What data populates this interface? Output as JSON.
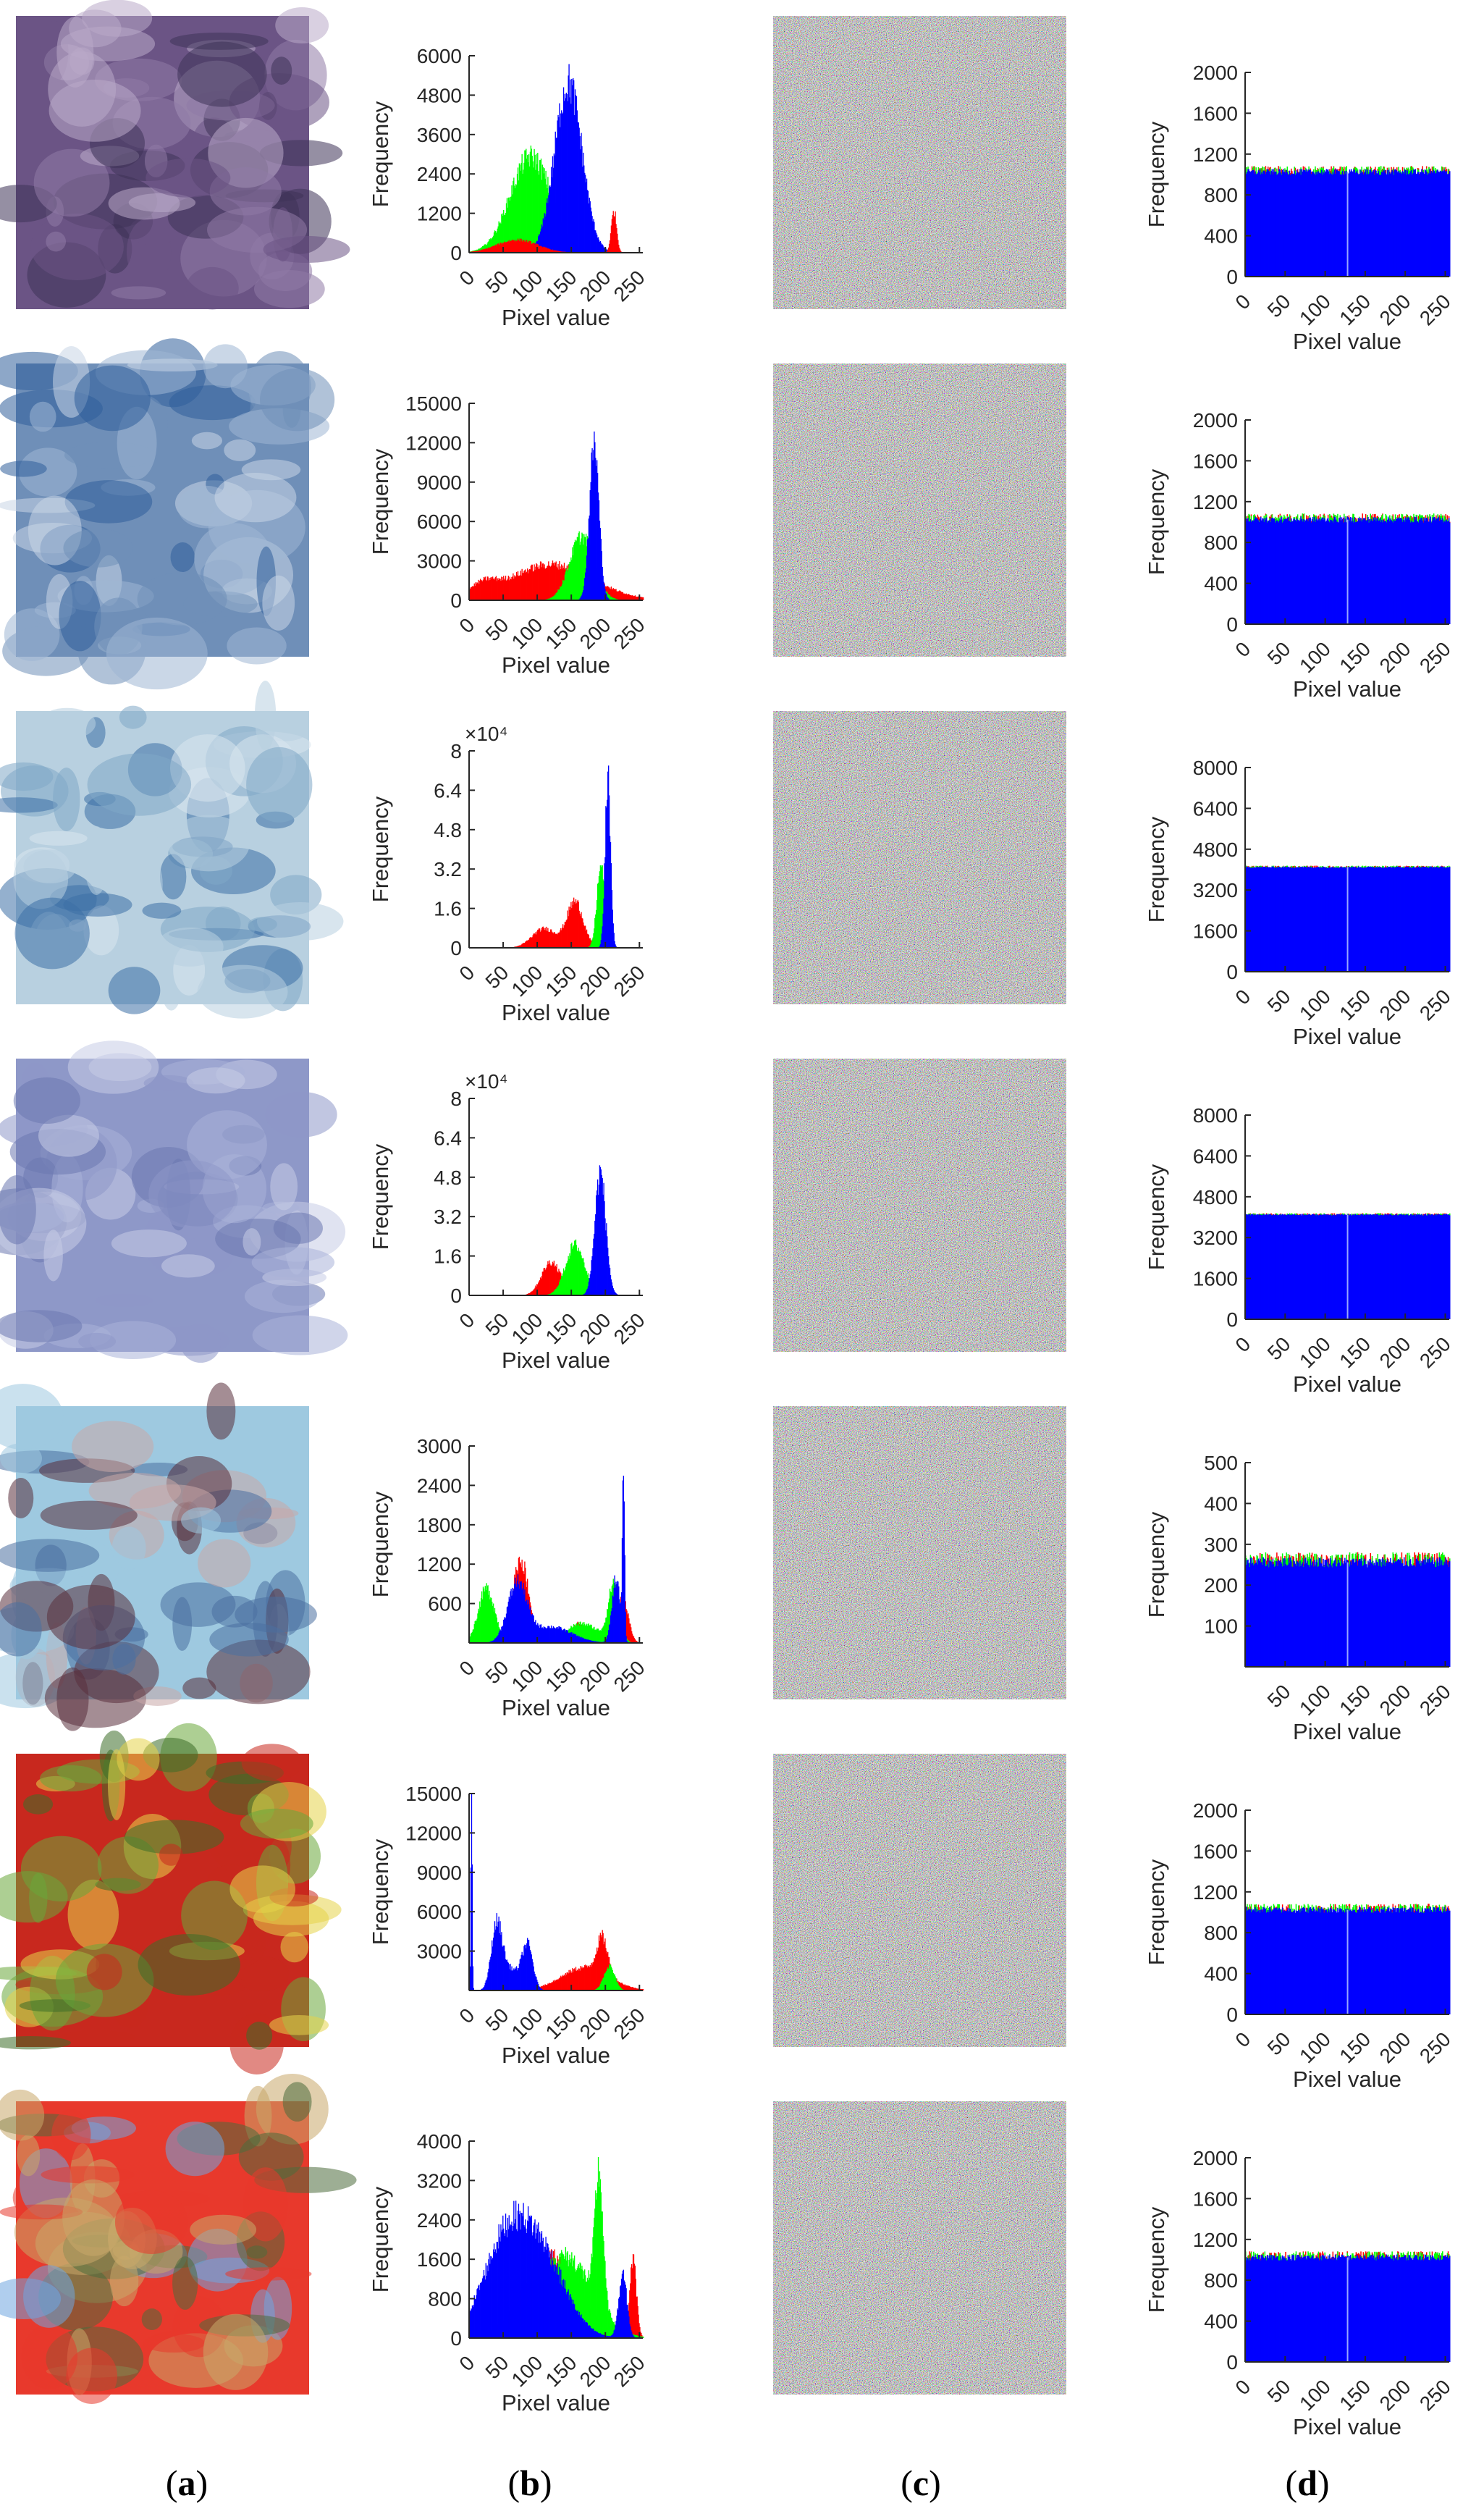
{
  "panel_labels": {
    "a": {
      "open": "(",
      "letter": "a",
      "close": ")"
    },
    "b": {
      "open": "(",
      "letter": "b",
      "close": ")"
    },
    "c": {
      "open": "(",
      "letter": "c",
      "close": ")"
    },
    "d": {
      "open": "(",
      "letter": "d",
      "close": ")"
    }
  },
  "rows": [
    {
      "image": "aerial-airport",
      "image_colors": [
        "#6b5485",
        "#8f7aa6",
        "#3e3358",
        "#b9a9c9"
      ]
    },
    {
      "image": "aerial-city",
      "image_colors": [
        "#6f8fb8",
        "#9fb7d4",
        "#2f5f9a",
        "#c8d6e6"
      ]
    },
    {
      "image": "aerial-river",
      "image_colors": [
        "#b8d0e0",
        "#d8e6ee",
        "#7fa7c7",
        "#3d6fa5"
      ]
    },
    {
      "image": "aerial-fields",
      "image_colors": [
        "#8e98c8",
        "#aab3d8",
        "#6c78b0",
        "#c6cce6"
      ]
    },
    {
      "image": "tree-seascape",
      "image_colors": [
        "#9ec9e0",
        "#5a2f3c",
        "#c9a7a7",
        "#4a6fa0"
      ]
    },
    {
      "image": "peppers",
      "image_colors": [
        "#c8281e",
        "#6aa83a",
        "#e6d44a",
        "#3c6e28"
      ]
    },
    {
      "image": "baboon",
      "image_colors": [
        "#e8392c",
        "#6fa6e0",
        "#c8a86a",
        "#4d6b3c"
      ]
    }
  ],
  "chart_data": [
    {
      "type": "bar",
      "panel": "b",
      "row": 1,
      "xlabel": "Pixel value",
      "ylabel": "Frequency",
      "xlim": [
        0,
        255
      ],
      "ylim": [
        0,
        6000
      ],
      "yticks": [
        "0",
        "1200",
        "2400",
        "3600",
        "4800",
        "6000"
      ],
      "xticks": [
        "0",
        "50",
        "100",
        "150",
        "200",
        "250"
      ],
      "exponent": "",
      "series": [
        {
          "name": "",
          "color": "#00ff00",
          "peaks": [
            {
              "x": 90,
              "y": 3000,
              "w": 30
            }
          ]
        },
        {
          "name": "",
          "color": "#0000ff",
          "peaks": [
            {
              "x": 145,
              "y": 5300,
              "w": 20
            }
          ]
        },
        {
          "name": "",
          "color": "#ff0000",
          "peaks": [
            {
              "x": 212,
              "y": 1300,
              "w": 4
            },
            {
              "x": 70,
              "y": 400,
              "w": 30
            }
          ]
        }
      ]
    },
    {
      "type": "bar",
      "panel": "d",
      "row": 1,
      "xlabel": "Pixel value",
      "ylabel": "Frequency",
      "xlim": [
        0,
        255
      ],
      "ylim": [
        0,
        2000
      ],
      "yticks": [
        "0",
        "400",
        "800",
        "1200",
        "1600",
        "2000"
      ],
      "xticks": [
        "0",
        "50",
        "100",
        "150",
        "200",
        "250"
      ],
      "exponent": "",
      "flat_level": 1024,
      "noise": 60
    },
    {
      "type": "bar",
      "panel": "b",
      "row": 2,
      "xlabel": "Pixel value",
      "ylabel": "Frequency",
      "xlim": [
        0,
        255
      ],
      "ylim": [
        0,
        15000
      ],
      "yticks": [
        "0",
        "3000",
        "6000",
        "9000",
        "12000",
        "15000"
      ],
      "xticks": [
        "0",
        "50",
        "100",
        "150",
        "200",
        "250"
      ],
      "exponent": "",
      "series": [
        {
          "name": "",
          "color": "#ff0000",
          "peaks": [
            {
              "x": 120,
              "y": 2800,
              "w": 60
            },
            {
              "x": 20,
              "y": 900,
              "w": 20
            }
          ]
        },
        {
          "name": "",
          "color": "#00ff00",
          "peaks": [
            {
              "x": 165,
              "y": 5000,
              "w": 18
            }
          ]
        },
        {
          "name": "",
          "color": "#0000ff",
          "peaks": [
            {
              "x": 183,
              "y": 12200,
              "w": 7
            }
          ]
        }
      ]
    },
    {
      "type": "bar",
      "panel": "d",
      "row": 2,
      "xlabel": "Pixel value",
      "ylabel": "Frequency",
      "xlim": [
        0,
        255
      ],
      "ylim": [
        0,
        2000
      ],
      "yticks": [
        "0",
        "400",
        "800",
        "1200",
        "1600",
        "2000"
      ],
      "xticks": [
        "0",
        "50",
        "100",
        "150",
        "200",
        "250"
      ],
      "exponent": "",
      "flat_level": 1024,
      "noise": 60
    },
    {
      "type": "bar",
      "panel": "b",
      "row": 3,
      "xlabel": "Pixel value",
      "ylabel": "Frequency",
      "xlim": [
        0,
        255
      ],
      "ylim": [
        0,
        80000
      ],
      "yticks": [
        "0",
        "1.6",
        "3.2",
        "4.8",
        "6.4",
        "8"
      ],
      "xticks": [
        "0",
        "50",
        "100",
        "150",
        "200",
        "250"
      ],
      "exponent": "×10⁴",
      "series": [
        {
          "name": "",
          "color": "#ff0000",
          "peaks": [
            {
              "x": 155,
              "y": 19000,
              "w": 12
            },
            {
              "x": 110,
              "y": 8000,
              "w": 18
            }
          ]
        },
        {
          "name": "",
          "color": "#00ff00",
          "peaks": [
            {
              "x": 193,
              "y": 34000,
              "w": 6
            }
          ]
        },
        {
          "name": "",
          "color": "#0000ff",
          "peaks": [
            {
              "x": 203,
              "y": 70000,
              "w": 4
            }
          ]
        }
      ]
    },
    {
      "type": "bar",
      "panel": "d",
      "row": 3,
      "xlabel": "Pixel value",
      "ylabel": "Frequency",
      "xlim": [
        0,
        255
      ],
      "ylim": [
        0,
        8000
      ],
      "yticks": [
        "0",
        "1600",
        "3200",
        "4800",
        "6400",
        "8000"
      ],
      "xticks": [
        "0",
        "50",
        "100",
        "150",
        "200",
        "250"
      ],
      "exponent": "",
      "flat_level": 4096,
      "noise": 60
    },
    {
      "type": "bar",
      "panel": "b",
      "row": 4,
      "xlabel": "Pixel value",
      "ylabel": "Frequency",
      "xlim": [
        0,
        255
      ],
      "ylim": [
        0,
        80000
      ],
      "yticks": [
        "0",
        "1.6",
        "3.2",
        "4.8",
        "6.4",
        "8"
      ],
      "xticks": [
        "0",
        "50",
        "100",
        "150",
        "200",
        "250"
      ],
      "exponent": "×10⁴",
      "series": [
        {
          "name": "",
          "color": "#ff0000",
          "peaks": [
            {
              "x": 120,
              "y": 14000,
              "w": 14
            }
          ]
        },
        {
          "name": "",
          "color": "#00ff00",
          "peaks": [
            {
              "x": 155,
              "y": 21000,
              "w": 14
            }
          ]
        },
        {
          "name": "",
          "color": "#0000ff",
          "peaks": [
            {
              "x": 192,
              "y": 51000,
              "w": 8
            }
          ]
        }
      ]
    },
    {
      "type": "bar",
      "panel": "d",
      "row": 4,
      "xlabel": "Pixel value",
      "ylabel": "Frequency",
      "xlim": [
        0,
        255
      ],
      "ylim": [
        0,
        8000
      ],
      "yticks": [
        "0",
        "1600",
        "3200",
        "4800",
        "6400",
        "8000"
      ],
      "xticks": [
        "0",
        "50",
        "100",
        "150",
        "200",
        "250"
      ],
      "exponent": "",
      "flat_level": 4096,
      "noise": 60
    },
    {
      "type": "bar",
      "panel": "b",
      "row": 5,
      "xlabel": "Pixel value",
      "ylabel": "Frequency",
      "xlim": [
        0,
        255
      ],
      "ylim": [
        0,
        3000
      ],
      "yticks": [
        "600",
        "1200",
        "1800",
        "2400",
        "3000"
      ],
      "xticks": [
        "0",
        "50",
        "100",
        "150",
        "200",
        "250"
      ],
      "exponent": "",
      "series": [
        {
          "name": "",
          "color": "#ff0000",
          "peaks": [
            {
              "x": 75,
              "y": 1300,
              "w": 12
            },
            {
              "x": 160,
              "y": 300,
              "w": 10
            },
            {
              "x": 225,
              "y": 700,
              "w": 8
            }
          ]
        },
        {
          "name": "",
          "color": "#00ff00",
          "peaks": [
            {
              "x": 25,
              "y": 850,
              "w": 12
            },
            {
              "x": 165,
              "y": 300,
              "w": 25
            },
            {
              "x": 212,
              "y": 900,
              "w": 8
            }
          ]
        },
        {
          "name": "",
          "color": "#0000ff",
          "peaks": [
            {
              "x": 70,
              "y": 900,
              "w": 14
            },
            {
              "x": 120,
              "y": 250,
              "w": 30
            },
            {
              "x": 215,
              "y": 1000,
              "w": 6
            },
            {
              "x": 226,
              "y": 2750,
              "w": 1.5
            }
          ]
        }
      ]
    },
    {
      "type": "bar",
      "panel": "d",
      "row": 5,
      "xlabel": "Pixel value",
      "ylabel": "Frequency",
      "xlim": [
        0,
        255
      ],
      "ylim": [
        0,
        500
      ],
      "yticks": [
        "100",
        "200",
        "300",
        "400",
        "500"
      ],
      "xticks": [
        "50",
        "100",
        "150",
        "200",
        "250"
      ],
      "exponent": "",
      "flat_level": 256,
      "noise": 25
    },
    {
      "type": "bar",
      "panel": "b",
      "row": 6,
      "xlabel": "Pixel value",
      "ylabel": "Frequency",
      "xlim": [
        0,
        255
      ],
      "ylim": [
        0,
        15000
      ],
      "yticks": [
        "3000",
        "6000",
        "9000",
        "12000",
        "15000"
      ],
      "xticks": [
        "0",
        "50",
        "100",
        "150",
        "200",
        "250"
      ],
      "exponent": "",
      "series": [
        {
          "name": "",
          "color": "#ff0000",
          "peaks": [
            {
              "x": 170,
              "y": 1800,
              "w": 35
            },
            {
              "x": 195,
              "y": 2800,
              "w": 8
            }
          ]
        },
        {
          "name": "",
          "color": "#00ff00",
          "peaks": [
            {
              "x": 205,
              "y": 1900,
              "w": 8
            }
          ]
        },
        {
          "name": "",
          "color": "#0000ff",
          "peaks": [
            {
              "x": 3,
              "y": 15000,
              "w": 1
            },
            {
              "x": 40,
              "y": 5000,
              "w": 8
            },
            {
              "x": 85,
              "y": 3500,
              "w": 8
            },
            {
              "x": 60,
              "y": 1600,
              "w": 12
            }
          ]
        }
      ]
    },
    {
      "type": "bar",
      "panel": "d",
      "row": 6,
      "xlabel": "Pixel value",
      "ylabel": "Frequency",
      "xlim": [
        0,
        255
      ],
      "ylim": [
        0,
        2000
      ],
      "yticks": [
        "0",
        "400",
        "800",
        "1200",
        "1600",
        "2000"
      ],
      "xticks": [
        "0",
        "50",
        "100",
        "150",
        "200",
        "250"
      ],
      "exponent": "",
      "flat_level": 1024,
      "noise": 60
    },
    {
      "type": "bar",
      "panel": "b",
      "row": 7,
      "xlabel": "Pixel value",
      "ylabel": "Frequency",
      "xlim": [
        0,
        255
      ],
      "ylim": [
        0,
        4000
      ],
      "yticks": [
        "0",
        "800",
        "1600",
        "2400",
        "3200",
        "4000"
      ],
      "xticks": [
        "0",
        "50",
        "100",
        "150",
        "200",
        "250"
      ],
      "exponent": "",
      "series": [
        {
          "name": "",
          "color": "#ff0000",
          "peaks": [
            {
              "x": 240,
              "y": 1600,
              "w": 5
            },
            {
              "x": 120,
              "y": 1700,
              "w": 40
            }
          ]
        },
        {
          "name": "",
          "color": "#00ff00",
          "peaks": [
            {
              "x": 190,
              "y": 2700,
              "w": 6
            },
            {
              "x": 140,
              "y": 1700,
              "w": 40
            }
          ]
        },
        {
          "name": "",
          "color": "#0000ff",
          "peaks": [
            {
              "x": 55,
              "y": 2000,
              "w": 35
            },
            {
              "x": 110,
              "y": 1400,
              "w": 35
            },
            {
              "x": 225,
              "y": 1300,
              "w": 6
            }
          ]
        }
      ]
    },
    {
      "type": "bar",
      "panel": "d",
      "row": 7,
      "xlabel": "Pixel value",
      "ylabel": "Frequency",
      "xlim": [
        0,
        255
      ],
      "ylim": [
        0,
        2000
      ],
      "yticks": [
        "0",
        "400",
        "800",
        "1200",
        "1600",
        "2000"
      ],
      "xticks": [
        "0",
        "50",
        "100",
        "150",
        "200",
        "250"
      ],
      "exponent": "",
      "flat_level": 1024,
      "noise": 60
    }
  ]
}
